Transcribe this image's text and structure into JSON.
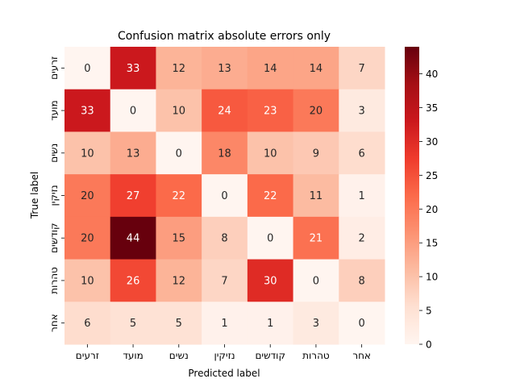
{
  "chart_data": {
    "type": "heatmap",
    "title": "Confusion matrix absolute errors only",
    "xlabel": "Predicted label",
    "ylabel": "True label",
    "x_categories": [
      "זרעים",
      "מועד",
      "נשים",
      "נזיקין",
      "קודשים",
      "טהרות",
      "אחר"
    ],
    "y_categories": [
      "זרעים",
      "מועד",
      "נשים",
      "נזיקין",
      "קודשים",
      "טהרות",
      "אחר"
    ],
    "values": [
      [
        0,
        33,
        12,
        13,
        14,
        14,
        7
      ],
      [
        33,
        0,
        10,
        24,
        23,
        20,
        3
      ],
      [
        10,
        13,
        0,
        18,
        10,
        9,
        6
      ],
      [
        20,
        27,
        22,
        0,
        22,
        11,
        1
      ],
      [
        20,
        44,
        15,
        8,
        0,
        21,
        2
      ],
      [
        10,
        26,
        12,
        7,
        30,
        0,
        8
      ],
      [
        6,
        5,
        5,
        1,
        1,
        3,
        0
      ]
    ],
    "colormap": "Reds",
    "colorbar": {
      "min": 0,
      "max": 44,
      "ticks": [
        0,
        5,
        10,
        15,
        20,
        25,
        30,
        35,
        40
      ]
    },
    "annotations": true,
    "grid": false
  }
}
